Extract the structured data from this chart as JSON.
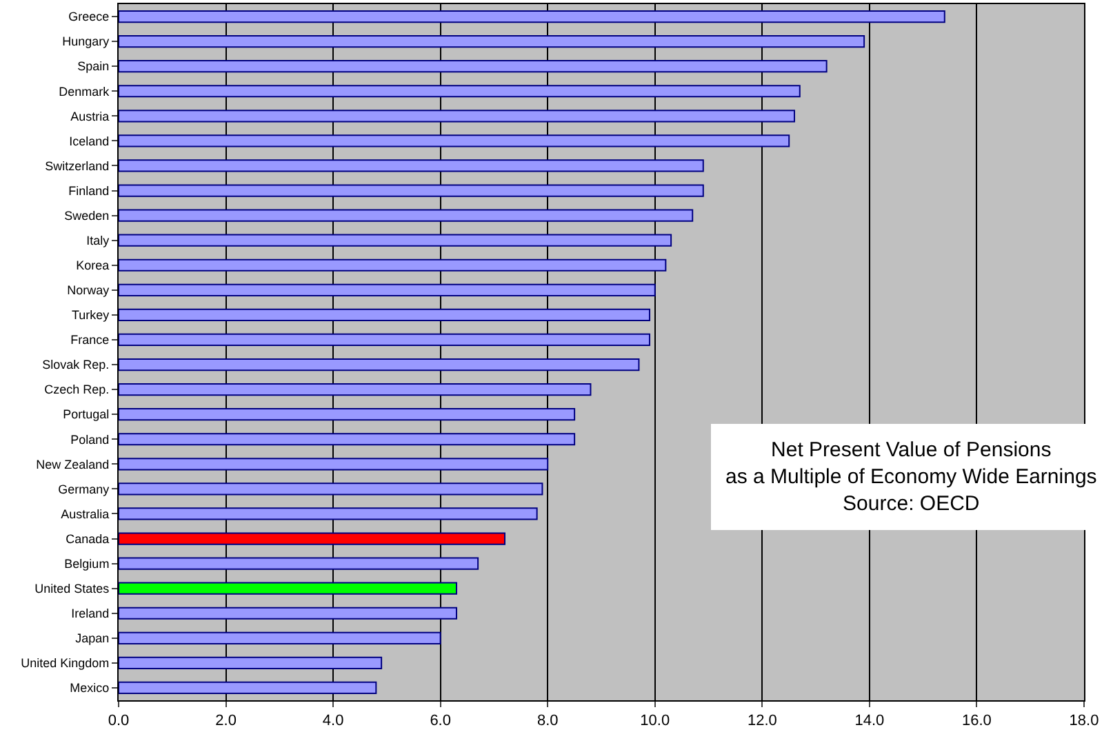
{
  "chart_data": {
    "type": "bar",
    "orientation": "horizontal",
    "title": "Net Present Value of Pensions\nas a Multiple of Economy Wide Earnings",
    "annotations": [
      "Source: OECD"
    ],
    "categories": [
      "Greece",
      "Hungary",
      "Spain",
      "Denmark",
      "Austria",
      "Iceland",
      "Switzerland",
      "Finland",
      "Sweden",
      "Italy",
      "Korea",
      "Norway",
      "Turkey",
      "France",
      "Slovak Rep.",
      "Czech Rep.",
      "Portugal",
      "Poland",
      "New Zealand",
      "Germany",
      "Australia",
      "Canada",
      "Belgium",
      "United States",
      "Ireland",
      "Japan",
      "United Kingdom",
      "Mexico"
    ],
    "values": [
      15.4,
      13.9,
      13.2,
      12.7,
      12.6,
      12.5,
      10.9,
      10.9,
      10.7,
      10.3,
      10.2,
      10.0,
      9.9,
      9.9,
      9.7,
      8.8,
      8.5,
      8.5,
      8.0,
      7.9,
      7.8,
      7.2,
      6.7,
      6.3,
      6.3,
      6.0,
      4.9,
      4.8
    ],
    "colors": [
      "#9999ff",
      "#9999ff",
      "#9999ff",
      "#9999ff",
      "#9999ff",
      "#9999ff",
      "#9999ff",
      "#9999ff",
      "#9999ff",
      "#9999ff",
      "#9999ff",
      "#9999ff",
      "#9999ff",
      "#9999ff",
      "#9999ff",
      "#9999ff",
      "#9999ff",
      "#9999ff",
      "#9999ff",
      "#9999ff",
      "#9999ff",
      "#ff0000",
      "#9999ff",
      "#00ff00",
      "#9999ff",
      "#9999ff",
      "#9999ff",
      "#9999ff"
    ],
    "xlim": [
      0,
      18
    ],
    "xticks": [
      {
        "value": 0,
        "label": "0.0"
      },
      {
        "value": 2,
        "label": "2.0"
      },
      {
        "value": 4,
        "label": "4.0"
      },
      {
        "value": 6,
        "label": "6.0"
      },
      {
        "value": 8,
        "label": "8.0"
      },
      {
        "value": 10,
        "label": "10.0"
      },
      {
        "value": 12,
        "label": "12.0"
      },
      {
        "value": 14,
        "label": "14.0"
      },
      {
        "value": 16,
        "label": "16.0"
      },
      {
        "value": 18,
        "label": "18.0"
      }
    ],
    "grid": "x"
  }
}
